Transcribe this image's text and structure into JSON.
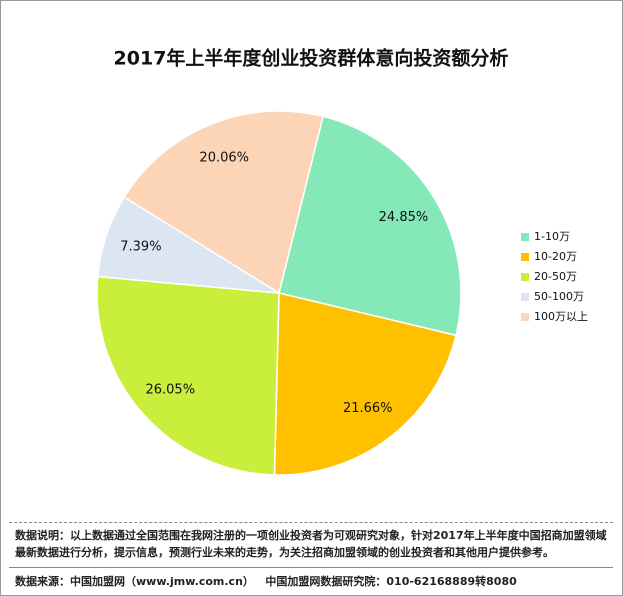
{
  "chart_data": {
    "type": "pie",
    "title": "2017年上半年度创业投资群体意向投资额分析",
    "categories": [
      "1-10万",
      "10-20万",
      "20-50万",
      "50-100万",
      "100万以上"
    ],
    "values": [
      24.85,
      21.66,
      26.05,
      7.39,
      20.06
    ],
    "value_labels": [
      "24.85%",
      "21.66%",
      "26.05%",
      "7.39%",
      "20.06%"
    ],
    "colors": [
      "#84e8b8",
      "#ffc000",
      "#c9ef3c",
      "#dce6f2",
      "#fbd5b6"
    ],
    "legend": "right",
    "note": "数据说明：以上数据通过全国范围在我网注册的一项创业投资者为可观研究对象，针对2017年上半年度中国招商加盟领域最新数据进行分析，提示信息，预测行业未来的走势，为关注招商加盟领域的创业投资者和其他用户提供参考。",
    "source": "数据来源：中国加盟网（www.jmw.com.cn）   中国加盟网数据研究院：010-62168889转8080"
  }
}
